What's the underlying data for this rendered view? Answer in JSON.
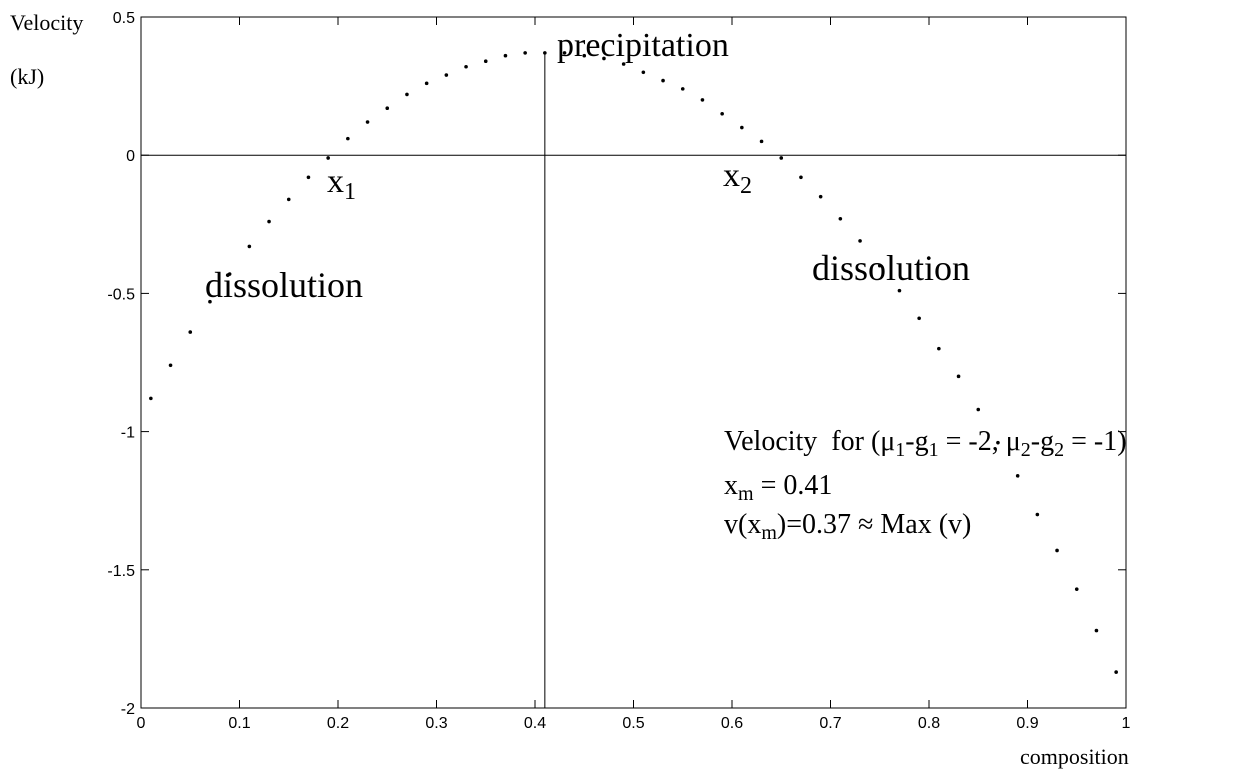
{
  "chart_data": {
    "type": "scatter",
    "y_label": [
      "Velocity",
      "(kJ)"
    ],
    "x_label": "composition",
    "x": [
      0.01,
      0.03,
      0.05,
      0.07,
      0.09,
      0.11,
      0.13,
      0.15,
      0.17,
      0.19,
      0.21,
      0.23,
      0.25,
      0.27,
      0.29,
      0.31,
      0.33,
      0.35,
      0.37,
      0.39,
      0.41,
      0.43,
      0.45,
      0.47,
      0.49,
      0.51,
      0.53,
      0.55,
      0.57,
      0.59,
      0.61,
      0.63,
      0.65,
      0.67,
      0.69,
      0.71,
      0.73,
      0.75,
      0.77,
      0.79,
      0.81,
      0.83,
      0.85,
      0.87,
      0.89,
      0.91,
      0.93,
      0.95,
      0.97,
      0.99
    ],
    "values": [
      -0.88,
      -0.76,
      -0.64,
      -0.53,
      -0.43,
      -0.33,
      -0.24,
      -0.16,
      -0.08,
      -0.01,
      0.06,
      0.12,
      0.17,
      0.22,
      0.26,
      0.29,
      0.32,
      0.34,
      0.36,
      0.37,
      0.37,
      0.37,
      0.36,
      0.35,
      0.33,
      0.3,
      0.27,
      0.24,
      0.2,
      0.15,
      0.1,
      0.05,
      -0.01,
      -0.08,
      -0.15,
      -0.23,
      -0.31,
      -0.4,
      -0.49,
      -0.59,
      -0.7,
      -0.8,
      -0.92,
      -1.04,
      -1.16,
      -1.3,
      -1.43,
      -1.57,
      -1.72,
      -1.87
    ],
    "color": "#000000",
    "xlim": [
      0,
      1
    ],
    "xticks": [
      0,
      0.1,
      0.2,
      0.3,
      0.4,
      0.5,
      0.6,
      0.7,
      0.8,
      0.9,
      1
    ],
    "ylim": [
      -2,
      0.5
    ],
    "yticks": [
      -2,
      -1.5,
      -1,
      -0.5,
      0,
      0.5
    ],
    "vline": 0.41,
    "hline": 0,
    "annotations": [
      [
        {
          "text": "precipitation"
        }
      ],
      [
        {
          "text": "x"
        },
        {
          "sub": "1"
        }
      ],
      [
        {
          "text": "x"
        },
        {
          "sub": "2"
        }
      ],
      [
        {
          "text": "dissolution"
        }
      ],
      [
        {
          "text": "dissolution"
        }
      ],
      [
        {
          "text": "Velocity  for (μ"
        },
        {
          "sub": "1"
        },
        {
          "text": "-g"
        },
        {
          "sub": "1"
        },
        {
          "text": " = -2, μ"
        },
        {
          "sub": "2"
        },
        {
          "text": "-g"
        },
        {
          "sub": "2"
        },
        {
          "text": " = -1)"
        }
      ],
      [
        {
          "text": "x"
        },
        {
          "sub": "m"
        },
        {
          "text": " = 0.41"
        }
      ],
      [
        {
          "text": "v(x"
        },
        {
          "sub": "m"
        },
        {
          "text": ")=0.37 ≈ Max (v)"
        }
      ]
    ]
  }
}
